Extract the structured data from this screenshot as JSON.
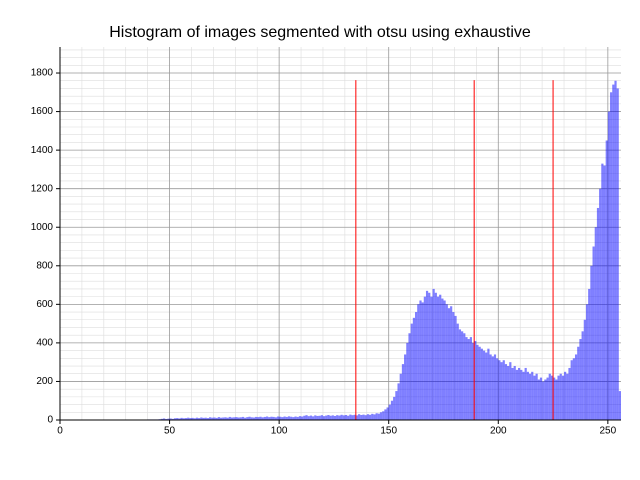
{
  "chart_data": {
    "type": "histogram",
    "title": "Histogram of images segmented with otsu using exhaustive",
    "bins": [
      0,
      1,
      2,
      3,
      4,
      5,
      6,
      7,
      8,
      9,
      10,
      11,
      12,
      13,
      14,
      15,
      16,
      17,
      18,
      19,
      20,
      21,
      22,
      23,
      24,
      25,
      26,
      27,
      28,
      29,
      30,
      31,
      32,
      33,
      34,
      35,
      36,
      37,
      38,
      39,
      40,
      41,
      42,
      43,
      44,
      45,
      46,
      47,
      48,
      49,
      50,
      51,
      52,
      53,
      54,
      55,
      56,
      57,
      58,
      59,
      60,
      61,
      62,
      63,
      64,
      65,
      66,
      67,
      68,
      69,
      70,
      71,
      72,
      73,
      74,
      75,
      76,
      77,
      78,
      79,
      80,
      81,
      82,
      83,
      84,
      85,
      86,
      87,
      88,
      89,
      90,
      91,
      92,
      93,
      94,
      95,
      96,
      97,
      98,
      99,
      100,
      101,
      102,
      103,
      104,
      105,
      106,
      107,
      108,
      109,
      110,
      111,
      112,
      113,
      114,
      115,
      116,
      117,
      118,
      119,
      120,
      121,
      122,
      123,
      124,
      125,
      126,
      127,
      128,
      129,
      130,
      131,
      132,
      133,
      134,
      135,
      136,
      137,
      138,
      139,
      140,
      141,
      142,
      143,
      144,
      145,
      146,
      147,
      148,
      149,
      150,
      151,
      152,
      153,
      154,
      155,
      156,
      157,
      158,
      159,
      160,
      161,
      162,
      163,
      164,
      165,
      166,
      167,
      168,
      169,
      170,
      171,
      172,
      173,
      174,
      175,
      176,
      177,
      178,
      179,
      180,
      181,
      182,
      183,
      184,
      185,
      186,
      187,
      188,
      189,
      190,
      191,
      192,
      193,
      194,
      195,
      196,
      197,
      198,
      199,
      200,
      201,
      202,
      203,
      204,
      205,
      206,
      207,
      208,
      209,
      210,
      211,
      212,
      213,
      214,
      215,
      216,
      217,
      218,
      219,
      220,
      221,
      222,
      223,
      224,
      225,
      226,
      227,
      228,
      229,
      230,
      231,
      232,
      233,
      234,
      235,
      236,
      237,
      238,
      239,
      240,
      241,
      242,
      243,
      244,
      245,
      246,
      247,
      248,
      249,
      250,
      251,
      252,
      253,
      254,
      255,
      256
    ],
    "values": [
      0,
      0,
      0,
      0,
      0,
      0,
      0,
      0,
      0,
      0,
      0,
      0,
      1,
      1,
      1,
      1,
      1,
      1,
      1,
      1,
      1,
      1,
      1,
      1,
      1,
      1,
      2,
      2,
      2,
      2,
      2,
      2,
      2,
      2,
      2,
      2,
      2,
      2,
      2,
      2,
      3,
      3,
      3,
      3,
      3,
      4,
      6,
      8,
      5,
      7,
      8,
      6,
      9,
      10,
      8,
      11,
      9,
      10,
      12,
      10,
      11,
      9,
      12,
      10,
      13,
      11,
      12,
      10,
      14,
      12,
      13,
      11,
      15,
      12,
      13,
      14,
      12,
      16,
      13,
      14,
      15,
      13,
      14,
      16,
      12,
      15,
      17,
      14,
      13,
      16,
      15,
      17,
      14,
      16,
      18,
      15,
      17,
      16,
      14,
      18,
      17,
      15,
      18,
      16,
      19,
      17,
      15,
      18,
      16,
      20,
      18,
      22,
      25,
      20,
      23,
      19,
      24,
      21,
      22,
      25,
      20,
      23,
      26,
      22,
      24,
      21,
      25,
      23,
      27,
      24,
      26,
      22,
      28,
      25,
      27,
      24,
      30,
      26,
      28,
      25,
      30,
      27,
      32,
      29,
      35,
      33,
      40,
      45,
      55,
      65,
      80,
      100,
      120,
      150,
      190,
      240,
      290,
      340,
      400,
      450,
      500,
      530,
      560,
      600,
      620,
      610,
      640,
      670,
      660,
      640,
      680,
      660,
      640,
      650,
      630,
      620,
      600,
      580,
      590,
      560,
      540,
      500,
      470,
      460,
      450,
      430,
      420,
      430,
      400,
      410,
      390,
      380,
      370,
      360,
      350,
      370,
      340,
      330,
      340,
      320,
      310,
      300,
      310,
      290,
      280,
      300,
      270,
      280,
      260,
      270,
      260,
      250,
      270,
      250,
      240,
      250,
      230,
      240,
      210,
      220,
      200,
      210,
      220,
      240,
      230,
      220,
      210,
      230,
      240,
      230,
      250,
      240,
      270,
      310,
      320,
      340,
      380,
      420,
      460,
      520,
      600,
      680,
      800,
      900,
      1000,
      1100,
      1200,
      1330,
      1320,
      1450,
      1600,
      1700,
      1740,
      1760,
      1720,
      150
    ],
    "color": "#0000ff",
    "alpha": 0.5,
    "thresholds": {
      "x": [
        135,
        189,
        225
      ],
      "height": 1763,
      "color": "#ff0000"
    },
    "xlim": [
      0,
      256
    ],
    "ylim": [
      0,
      1935
    ],
    "xticks": [
      0,
      50,
      100,
      150,
      200,
      250
    ],
    "yticks": [
      0,
      200,
      400,
      600,
      800,
      1000,
      1200,
      1400,
      1600,
      1800
    ],
    "grid": true,
    "minor_grid": true
  }
}
